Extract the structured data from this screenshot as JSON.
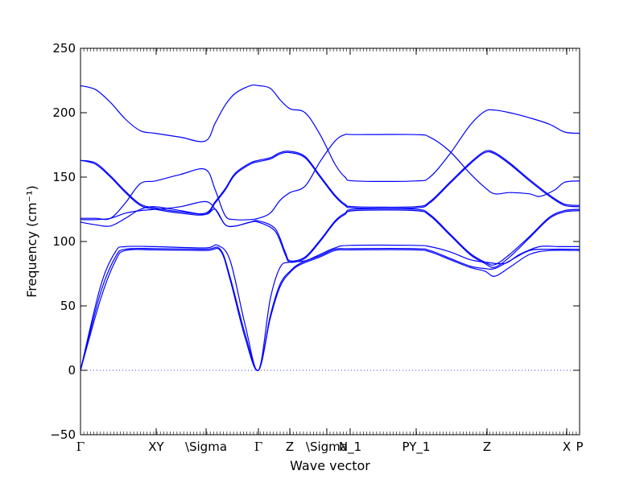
{
  "chart_data": {
    "type": "line",
    "xlabel": "Wave vector",
    "ylabel": "Frequency (cm⁻¹)",
    "ylim": [
      -50,
      250
    ],
    "y_ticks": [
      -50,
      0,
      50,
      100,
      150,
      200,
      250
    ],
    "xlim": [
      0,
      1
    ],
    "grid": false,
    "line_color": "#0000ff",
    "zero_line_color": "#0000ff",
    "x_tick_labels": [
      {
        "label": "Γ",
        "x": 0.0
      },
      {
        "label": "XY",
        "x": 0.1516
      },
      {
        "label": "\\Sigma",
        "x": 0.2516
      },
      {
        "label": "Γ",
        "x": 0.3565
      },
      {
        "label": "Z",
        "x": 0.4194
      },
      {
        "label": "\\Sigma",
        "x": 0.4935
      },
      {
        "label": "N_1",
        "x": 0.5403
      },
      {
        "label": "PY_1",
        "x": 0.6726
      },
      {
        "label": "Z",
        "x": 0.8145
      },
      {
        "label": "X",
        "x": 0.9742
      },
      {
        "label": "P",
        "x": 1.0
      }
    ],
    "series": [
      {
        "points": [
          [
            0.0,
            0
          ],
          [
            0.04,
            55
          ],
          [
            0.07,
            85
          ],
          [
            0.09,
            93
          ],
          [
            0.15,
            93.5
          ],
          [
            0.25,
            93
          ],
          [
            0.28,
            93
          ],
          [
            0.3,
            70
          ],
          [
            0.33,
            25
          ],
          [
            0.3565,
            0
          ],
          [
            0.38,
            40
          ],
          [
            0.4,
            65
          ],
          [
            0.42,
            76
          ],
          [
            0.44,
            82
          ],
          [
            0.48,
            88
          ],
          [
            0.51,
            93
          ],
          [
            0.54,
            93.5
          ],
          [
            0.67,
            93.5
          ],
          [
            0.7,
            92
          ],
          [
            0.74,
            86
          ],
          [
            0.78,
            80
          ],
          [
            0.81,
            77
          ],
          [
            0.83,
            73
          ],
          [
            0.86,
            80
          ],
          [
            0.9,
            90
          ],
          [
            0.94,
            93
          ],
          [
            1.0,
            93
          ]
        ]
      },
      {
        "points": [
          [
            0.0,
            0
          ],
          [
            0.04,
            60
          ],
          [
            0.07,
            88
          ],
          [
            0.09,
            94
          ],
          [
            0.15,
            94.5
          ],
          [
            0.25,
            94
          ],
          [
            0.28,
            94
          ],
          [
            0.3,
            72
          ],
          [
            0.33,
            28
          ],
          [
            0.3565,
            0
          ],
          [
            0.38,
            42
          ],
          [
            0.4,
            67
          ],
          [
            0.42,
            77
          ],
          [
            0.44,
            83
          ],
          [
            0.48,
            89
          ],
          [
            0.51,
            94
          ],
          [
            0.54,
            94.5
          ],
          [
            0.67,
            94.5
          ],
          [
            0.7,
            93
          ],
          [
            0.74,
            87
          ],
          [
            0.78,
            81
          ],
          [
            0.81,
            79
          ],
          [
            0.83,
            79
          ],
          [
            0.86,
            85
          ],
          [
            0.9,
            93
          ],
          [
            0.94,
            94
          ],
          [
            1.0,
            94
          ]
        ]
      },
      {
        "points": [
          [
            0.0,
            0
          ],
          [
            0.04,
            65
          ],
          [
            0.07,
            92
          ],
          [
            0.09,
            96
          ],
          [
            0.15,
            96
          ],
          [
            0.25,
            95
          ],
          [
            0.275,
            97
          ],
          [
            0.3,
            85
          ],
          [
            0.33,
            35
          ],
          [
            0.3565,
            0
          ],
          [
            0.38,
            55
          ],
          [
            0.4,
            80
          ],
          [
            0.42,
            84
          ],
          [
            0.45,
            85
          ],
          [
            0.48,
            90
          ],
          [
            0.51,
            95
          ],
          [
            0.54,
            97
          ],
          [
            0.67,
            97
          ],
          [
            0.7,
            96
          ],
          [
            0.74,
            92
          ],
          [
            0.78,
            86
          ],
          [
            0.81,
            84
          ],
          [
            0.85,
            83
          ],
          [
            0.88,
            90
          ],
          [
            0.92,
            96
          ],
          [
            0.96,
            96
          ],
          [
            1.0,
            96
          ]
        ]
      },
      {
        "points": [
          [
            0.0,
            115
          ],
          [
            0.03,
            113
          ],
          [
            0.06,
            112
          ],
          [
            0.09,
            118
          ],
          [
            0.12,
            125
          ],
          [
            0.15,
            127
          ],
          [
            0.2,
            124
          ],
          [
            0.25,
            121
          ],
          [
            0.27,
            125
          ],
          [
            0.29,
            113
          ],
          [
            0.31,
            112
          ],
          [
            0.34,
            115
          ],
          [
            0.3565,
            115
          ],
          [
            0.39,
            108
          ],
          [
            0.41,
            90
          ],
          [
            0.42,
            84
          ],
          [
            0.45,
            87
          ],
          [
            0.48,
            100
          ],
          [
            0.51,
            115
          ],
          [
            0.53,
            121
          ],
          [
            0.55,
            124
          ],
          [
            0.67,
            124
          ],
          [
            0.7,
            120
          ],
          [
            0.74,
            105
          ],
          [
            0.78,
            90
          ],
          [
            0.81,
            83
          ],
          [
            0.83,
            80
          ],
          [
            0.86,
            88
          ],
          [
            0.9,
            103
          ],
          [
            0.94,
            118
          ],
          [
            0.97,
            123
          ],
          [
            1.0,
            124
          ]
        ]
      },
      {
        "points": [
          [
            0.0,
            117
          ],
          [
            0.03,
            117
          ],
          [
            0.06,
            118
          ],
          [
            0.09,
            122
          ],
          [
            0.12,
            124
          ],
          [
            0.15,
            125
          ],
          [
            0.2,
            127
          ],
          [
            0.25,
            131
          ],
          [
            0.27,
            125
          ],
          [
            0.29,
            113
          ],
          [
            0.31,
            112
          ],
          [
            0.34,
            115
          ],
          [
            0.3565,
            116
          ],
          [
            0.39,
            110
          ],
          [
            0.41,
            92
          ],
          [
            0.42,
            85
          ],
          [
            0.45,
            88
          ],
          [
            0.48,
            101
          ],
          [
            0.51,
            116
          ],
          [
            0.53,
            122
          ],
          [
            0.55,
            125
          ],
          [
            0.67,
            125
          ],
          [
            0.7,
            121
          ],
          [
            0.74,
            106
          ],
          [
            0.78,
            91
          ],
          [
            0.81,
            84
          ],
          [
            0.83,
            82
          ],
          [
            0.86,
            90
          ],
          [
            0.9,
            104
          ],
          [
            0.94,
            119
          ],
          [
            0.97,
            124
          ],
          [
            1.0,
            125
          ]
        ]
      },
      {
        "points": [
          [
            0.0,
            118
          ],
          [
            0.03,
            118
          ],
          [
            0.06,
            118
          ],
          [
            0.09,
            130
          ],
          [
            0.12,
            145
          ],
          [
            0.15,
            147
          ],
          [
            0.2,
            152
          ],
          [
            0.25,
            156
          ],
          [
            0.27,
            140
          ],
          [
            0.29,
            120
          ],
          [
            0.31,
            117
          ],
          [
            0.34,
            117
          ],
          [
            0.3565,
            118
          ],
          [
            0.38,
            122
          ],
          [
            0.4,
            132
          ],
          [
            0.42,
            138
          ],
          [
            0.45,
            143
          ],
          [
            0.48,
            162
          ],
          [
            0.51,
            178
          ],
          [
            0.53,
            183
          ],
          [
            0.55,
            183
          ],
          [
            0.67,
            183
          ],
          [
            0.7,
            181
          ],
          [
            0.74,
            170
          ],
          [
            0.78,
            153
          ],
          [
            0.81,
            142
          ],
          [
            0.83,
            137
          ],
          [
            0.86,
            138
          ],
          [
            0.9,
            137
          ],
          [
            0.92,
            135
          ],
          [
            0.95,
            140
          ],
          [
            0.97,
            146
          ],
          [
            1.0,
            147
          ]
        ]
      },
      {
        "points": [
          [
            0.0,
            163
          ],
          [
            0.03,
            160
          ],
          [
            0.06,
            150
          ],
          [
            0.09,
            138
          ],
          [
            0.12,
            128
          ],
          [
            0.15,
            125
          ],
          [
            0.2,
            122
          ],
          [
            0.25,
            121
          ],
          [
            0.27,
            130
          ],
          [
            0.29,
            140
          ],
          [
            0.31,
            152
          ],
          [
            0.34,
            160
          ],
          [
            0.3565,
            162
          ],
          [
            0.38,
            164
          ],
          [
            0.4,
            168
          ],
          [
            0.42,
            169
          ],
          [
            0.45,
            165
          ],
          [
            0.48,
            150
          ],
          [
            0.51,
            135
          ],
          [
            0.53,
            128
          ],
          [
            0.55,
            126
          ],
          [
            0.67,
            126
          ],
          [
            0.7,
            130
          ],
          [
            0.74,
            145
          ],
          [
            0.78,
            160
          ],
          [
            0.81,
            169
          ],
          [
            0.83,
            168
          ],
          [
            0.86,
            160
          ],
          [
            0.9,
            147
          ],
          [
            0.94,
            135
          ],
          [
            0.97,
            128
          ],
          [
            1.0,
            127
          ]
        ]
      },
      {
        "points": [
          [
            0.0,
            163
          ],
          [
            0.03,
            161
          ],
          [
            0.06,
            151
          ],
          [
            0.09,
            139
          ],
          [
            0.12,
            129
          ],
          [
            0.15,
            126
          ],
          [
            0.2,
            123
          ],
          [
            0.25,
            122
          ],
          [
            0.27,
            131
          ],
          [
            0.29,
            141
          ],
          [
            0.31,
            153
          ],
          [
            0.34,
            161
          ],
          [
            0.3565,
            163
          ],
          [
            0.38,
            165
          ],
          [
            0.4,
            169
          ],
          [
            0.42,
            170
          ],
          [
            0.45,
            166
          ],
          [
            0.48,
            151
          ],
          [
            0.51,
            136
          ],
          [
            0.53,
            129
          ],
          [
            0.55,
            127
          ],
          [
            0.67,
            127
          ],
          [
            0.7,
            131
          ],
          [
            0.74,
            146
          ],
          [
            0.78,
            161
          ],
          [
            0.81,
            170
          ],
          [
            0.83,
            169
          ],
          [
            0.86,
            161
          ],
          [
            0.9,
            148
          ],
          [
            0.94,
            136
          ],
          [
            0.97,
            129
          ],
          [
            1.0,
            128
          ]
        ]
      },
      {
        "points": [
          [
            0.0,
            221
          ],
          [
            0.03,
            218
          ],
          [
            0.06,
            208
          ],
          [
            0.09,
            195
          ],
          [
            0.12,
            186
          ],
          [
            0.15,
            184
          ],
          [
            0.2,
            181
          ],
          [
            0.25,
            178
          ],
          [
            0.27,
            192
          ],
          [
            0.29,
            206
          ],
          [
            0.31,
            215
          ],
          [
            0.34,
            221
          ],
          [
            0.3565,
            221
          ],
          [
            0.38,
            219
          ],
          [
            0.4,
            210
          ],
          [
            0.42,
            203
          ],
          [
            0.45,
            200
          ],
          [
            0.48,
            183
          ],
          [
            0.51,
            160
          ],
          [
            0.53,
            150
          ],
          [
            0.55,
            147
          ],
          [
            0.67,
            147
          ],
          [
            0.7,
            150
          ],
          [
            0.74,
            168
          ],
          [
            0.78,
            190
          ],
          [
            0.81,
            201
          ],
          [
            0.83,
            202
          ],
          [
            0.86,
            200
          ],
          [
            0.9,
            196
          ],
          [
            0.94,
            191
          ],
          [
            0.97,
            185
          ],
          [
            1.0,
            184
          ]
        ]
      }
    ]
  }
}
